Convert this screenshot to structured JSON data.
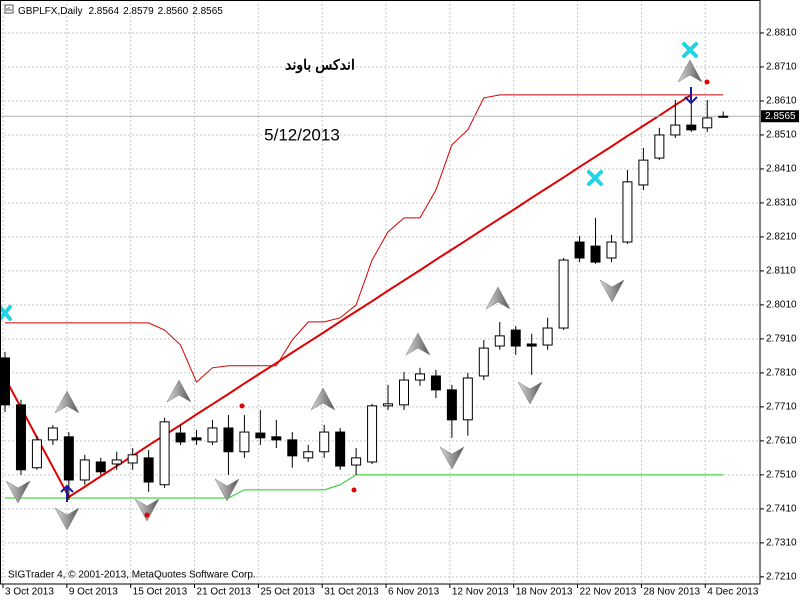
{
  "chart_data": {
    "type": "candlestick",
    "symbol": "GBPLFX,Daily",
    "last_bar_labels": [
      "2.8564",
      "2.8579",
      "2.8560",
      "2.8565"
    ],
    "annotations": [
      "اندكس باوند",
      "5/12/2013"
    ],
    "footer": "SIGTrader 4, © 2001-2013, MetaQuotes Software Corp.",
    "categories": [
      "3 Oct 2013",
      null,
      null,
      null,
      "9 Oct 2013",
      null,
      null,
      null,
      "15 Oct 2013",
      null,
      null,
      null,
      "21 Oct 2013",
      null,
      null,
      null,
      "25 Oct 2013",
      null,
      null,
      null,
      "31 Oct 2013",
      null,
      null,
      null,
      "6 Nov 2013",
      null,
      null,
      null,
      "12 Nov 2013",
      null,
      null,
      null,
      "18 Nov 2013",
      null,
      null,
      null,
      "22 Nov 2013",
      null,
      null,
      null,
      "28 Nov 2013",
      null,
      null,
      null,
      "4 Dec 2013",
      null
    ],
    "open": [
      2.7854,
      2.7716,
      2.7531,
      2.7613,
      2.7622,
      2.7495,
      2.7548,
      2.7542,
      2.7545,
      2.756,
      2.7481,
      2.7633,
      2.7619,
      2.7607,
      2.7648,
      2.7578,
      2.7633,
      2.7622,
      2.7613,
      2.756,
      2.7578,
      2.7636,
      2.7539,
      2.7548,
      2.7713,
      2.7716,
      2.7789,
      2.7801,
      2.776,
      2.7672,
      2.7801,
      2.7889,
      2.7936,
      2.7895,
      2.7892,
      2.7942,
      2.8195,
      2.8183,
      2.8148,
      2.8195,
      2.8363,
      2.8442,
      2.851,
      2.8539,
      2.8531,
      2.8564
    ],
    "high": [
      2.7872,
      2.7731,
      2.7625,
      2.7657,
      2.7636,
      2.7569,
      2.756,
      2.7578,
      2.7589,
      2.7583,
      2.7678,
      2.7657,
      2.7642,
      2.7672,
      2.7686,
      2.7686,
      2.7701,
      2.7672,
      2.7636,
      2.7598,
      2.7657,
      2.7648,
      2.7589,
      2.7719,
      2.7775,
      2.7813,
      2.7825,
      2.7819,
      2.7775,
      2.781,
      2.7907,
      2.796,
      2.7948,
      2.7925,
      2.7972,
      2.8148,
      2.8213,
      2.8266,
      2.8216,
      2.8407,
      2.8472,
      2.8531,
      2.8613,
      2.8636,
      2.8613,
      2.8579
    ],
    "low": [
      2.7695,
      2.751,
      2.7525,
      2.7598,
      2.7436,
      2.7481,
      2.751,
      2.7525,
      2.7525,
      2.746,
      2.7472,
      2.7598,
      2.7598,
      2.7598,
      2.751,
      2.756,
      2.7598,
      2.7589,
      2.7531,
      2.7548,
      2.756,
      2.7525,
      2.751,
      2.7542,
      2.7701,
      2.7701,
      2.7772,
      2.7736,
      2.7619,
      2.7625,
      2.7789,
      2.7878,
      2.7863,
      2.7804,
      2.7878,
      2.7936,
      2.8136,
      2.8131,
      2.8136,
      2.8189,
      2.8348,
      2.8436,
      2.8501,
      2.8519,
      2.8519,
      2.856
    ],
    "close": [
      2.7716,
      2.7525,
      2.7613,
      2.7648,
      2.7495,
      2.7554,
      2.7519,
      2.7554,
      2.7569,
      2.7489,
      2.7666,
      2.7607,
      2.7613,
      2.7648,
      2.7578,
      2.7636,
      2.7619,
      2.7613,
      2.7566,
      2.7578,
      2.7636,
      2.7536,
      2.756,
      2.7713,
      2.7719,
      2.7789,
      2.7807,
      2.776,
      2.7672,
      2.7795,
      2.7883,
      2.7919,
      2.7889,
      2.7889,
      2.7942,
      2.8142,
      2.8148,
      2.8136,
      2.8195,
      2.8372,
      2.8436,
      2.851,
      2.8539,
      2.8525,
      2.856,
      2.8565
    ],
    "up_color": "#ffffff",
    "down_color": "#000000",
    "series": [
      {
        "color": "#d40000",
        "width": 1,
        "values": [
          2.7957,
          2.7957,
          2.7957,
          2.7957,
          2.7957,
          2.7957,
          2.7957,
          2.7957,
          2.7957,
          2.7957,
          2.7936,
          2.7892,
          2.7783,
          2.7825,
          2.7831,
          2.7831,
          2.7831,
          2.7831,
          2.7907,
          2.796,
          2.796,
          2.7972,
          2.801,
          2.8142,
          2.8225,
          2.8266,
          2.8266,
          2.8348,
          2.8481,
          2.8525,
          2.8619,
          2.8628,
          2.8628,
          2.8628,
          2.8628,
          2.8628,
          2.8628,
          2.8628,
          2.8628,
          2.8628,
          2.8628,
          2.8628,
          2.8628,
          2.8628,
          2.8628,
          2.8628
        ]
      },
      {
        "color": "#22cc22",
        "width": 1,
        "values": [
          2.7442,
          2.7442,
          2.7442,
          2.7442,
          2.7442,
          2.7442,
          2.7442,
          2.7442,
          2.7442,
          2.7442,
          2.7442,
          2.7442,
          2.7442,
          2.7442,
          2.7442,
          2.7466,
          2.7466,
          2.7466,
          2.7466,
          2.7466,
          2.7466,
          2.7481,
          2.751,
          2.751,
          2.751,
          2.751,
          2.751,
          2.751,
          2.751,
          2.751,
          2.751,
          2.751,
          2.751,
          2.751,
          2.751,
          2.751,
          2.751,
          2.751,
          2.751,
          2.751,
          2.751,
          2.751,
          2.751,
          2.751,
          2.751,
          2.751
        ]
      },
      {
        "color": "#e00000",
        "width": 2,
        "values": [
          2.7795,
          2.7708,
          2.762,
          2.7533,
          2.7445,
          2.7475,
          2.7506,
          2.7536,
          2.7566,
          2.7597,
          2.7627,
          2.7657,
          2.7688,
          2.7718,
          2.7748,
          2.7779,
          2.7809,
          2.7839,
          2.787,
          2.79,
          2.793,
          2.7961,
          2.7991,
          2.8021,
          2.8052,
          2.8082,
          2.8112,
          2.8143,
          2.8173,
          2.8203,
          2.8234,
          2.8264,
          2.8294,
          2.8325,
          2.8355,
          2.8385,
          2.8416,
          2.8446,
          2.8476,
          2.8507,
          2.8537,
          2.8567,
          2.8598,
          2.8628,
          null,
          null
        ]
      }
    ],
    "ylim": [
      2.7189,
      2.8907
    ],
    "yticks": [
      {
        "value": 2.881,
        "label": "2.8810"
      },
      {
        "value": 2.871,
        "label": "2.8710"
      },
      {
        "value": 2.861,
        "label": "2.8610"
      },
      {
        "value": 2.851,
        "label": "2.8510"
      },
      {
        "value": 2.841,
        "label": "2.8410"
      },
      {
        "value": 2.831,
        "label": "2.8310"
      },
      {
        "value": 2.821,
        "label": "2.8210"
      },
      {
        "value": 2.811,
        "label": "2.8110"
      },
      {
        "value": 2.801,
        "label": "2.8010"
      },
      {
        "value": 2.791,
        "label": "2.7910"
      },
      {
        "value": 2.781,
        "label": "2.7810"
      },
      {
        "value": 2.771,
        "label": "2.7710"
      },
      {
        "value": 2.761,
        "label": "2.7610"
      },
      {
        "value": 2.751,
        "label": "2.7510"
      },
      {
        "value": 2.741,
        "label": "2.7410"
      },
      {
        "value": 2.731,
        "label": "2.7310"
      },
      {
        "value": 2.721,
        "label": "2.7210"
      }
    ],
    "grid": true
  }
}
